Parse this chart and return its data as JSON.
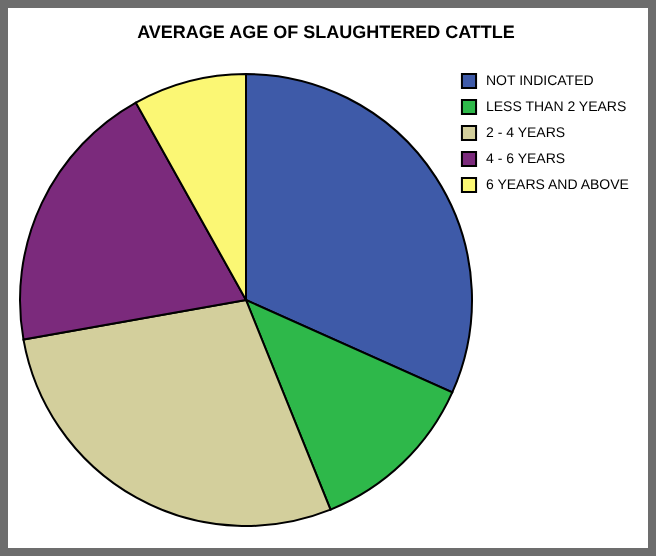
{
  "chart_data": {
    "type": "pie",
    "title": "AVERAGE AGE OF SLAUGHTERED CATTLE",
    "categories": [
      "NOT INDICATED",
      "LESS THAN 2 YEARS",
      "2 - 4 YEARS",
      "4 - 6 YEARS",
      "6 YEARS AND ABOVE"
    ],
    "values": [
      31.7,
      12.2,
      28.3,
      19.7,
      8.1
    ],
    "colors": [
      "#3e5aa8",
      "#2eb84a",
      "#d3cf9c",
      "#7b2a7c",
      "#fbf774"
    ],
    "legend": "right"
  }
}
